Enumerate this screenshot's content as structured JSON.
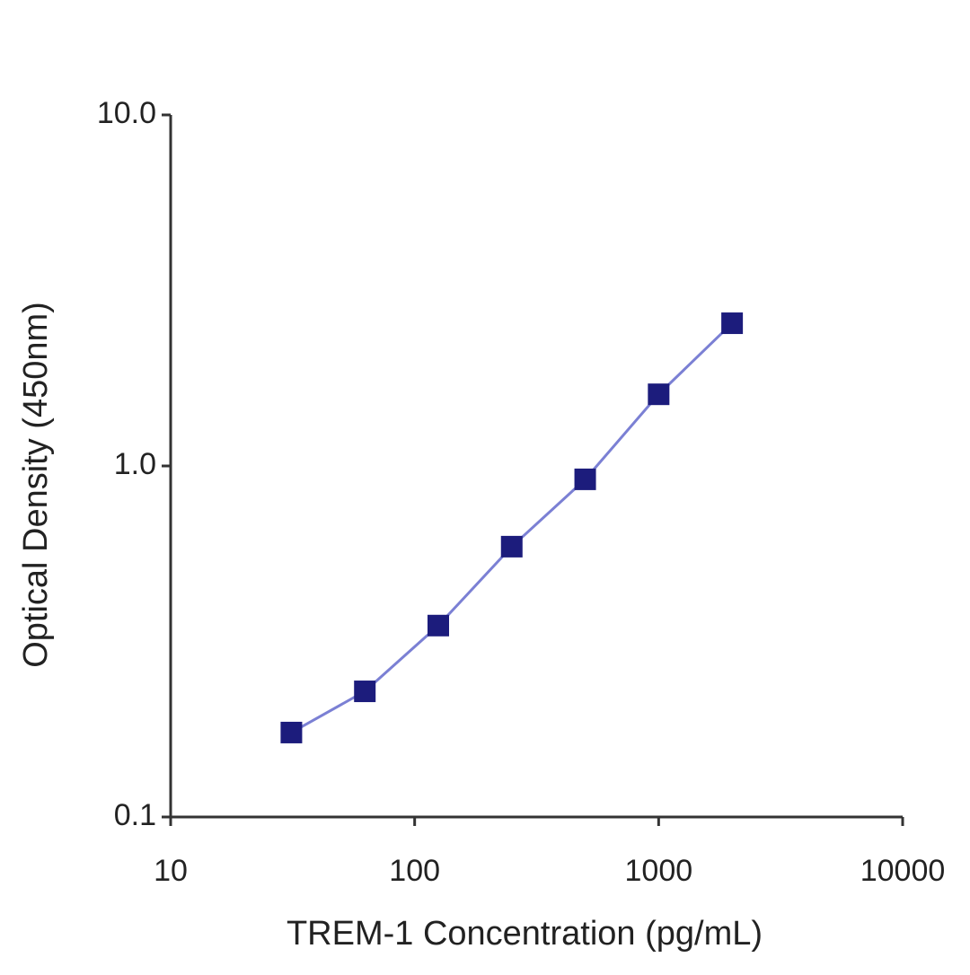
{
  "chart_data": {
    "type": "line",
    "x_label": "TREM-1 Concentration (pg/mL)",
    "y_label": "Optical Density (450nm)",
    "x": [
      31.25,
      62.5,
      125,
      250,
      500,
      1000,
      2000
    ],
    "series": [
      {
        "name": "TREM-1",
        "color": "#1c1c7c",
        "line_color": "#7b80d4",
        "values": [
          0.174,
          0.228,
          0.351,
          0.589,
          0.916,
          1.6,
          2.55
        ]
      }
    ],
    "xlim": [
      10,
      10000
    ],
    "xticks": [
      10,
      100,
      1000,
      10000
    ],
    "ylim": [
      0.1,
      10
    ],
    "yticks": [
      0.1,
      {
        "value": 1,
        "label": "1.0"
      },
      {
        "value": 10,
        "label": "10.0"
      }
    ],
    "xscale": "log",
    "yscale": "log",
    "grid": false,
    "legend": false
  }
}
